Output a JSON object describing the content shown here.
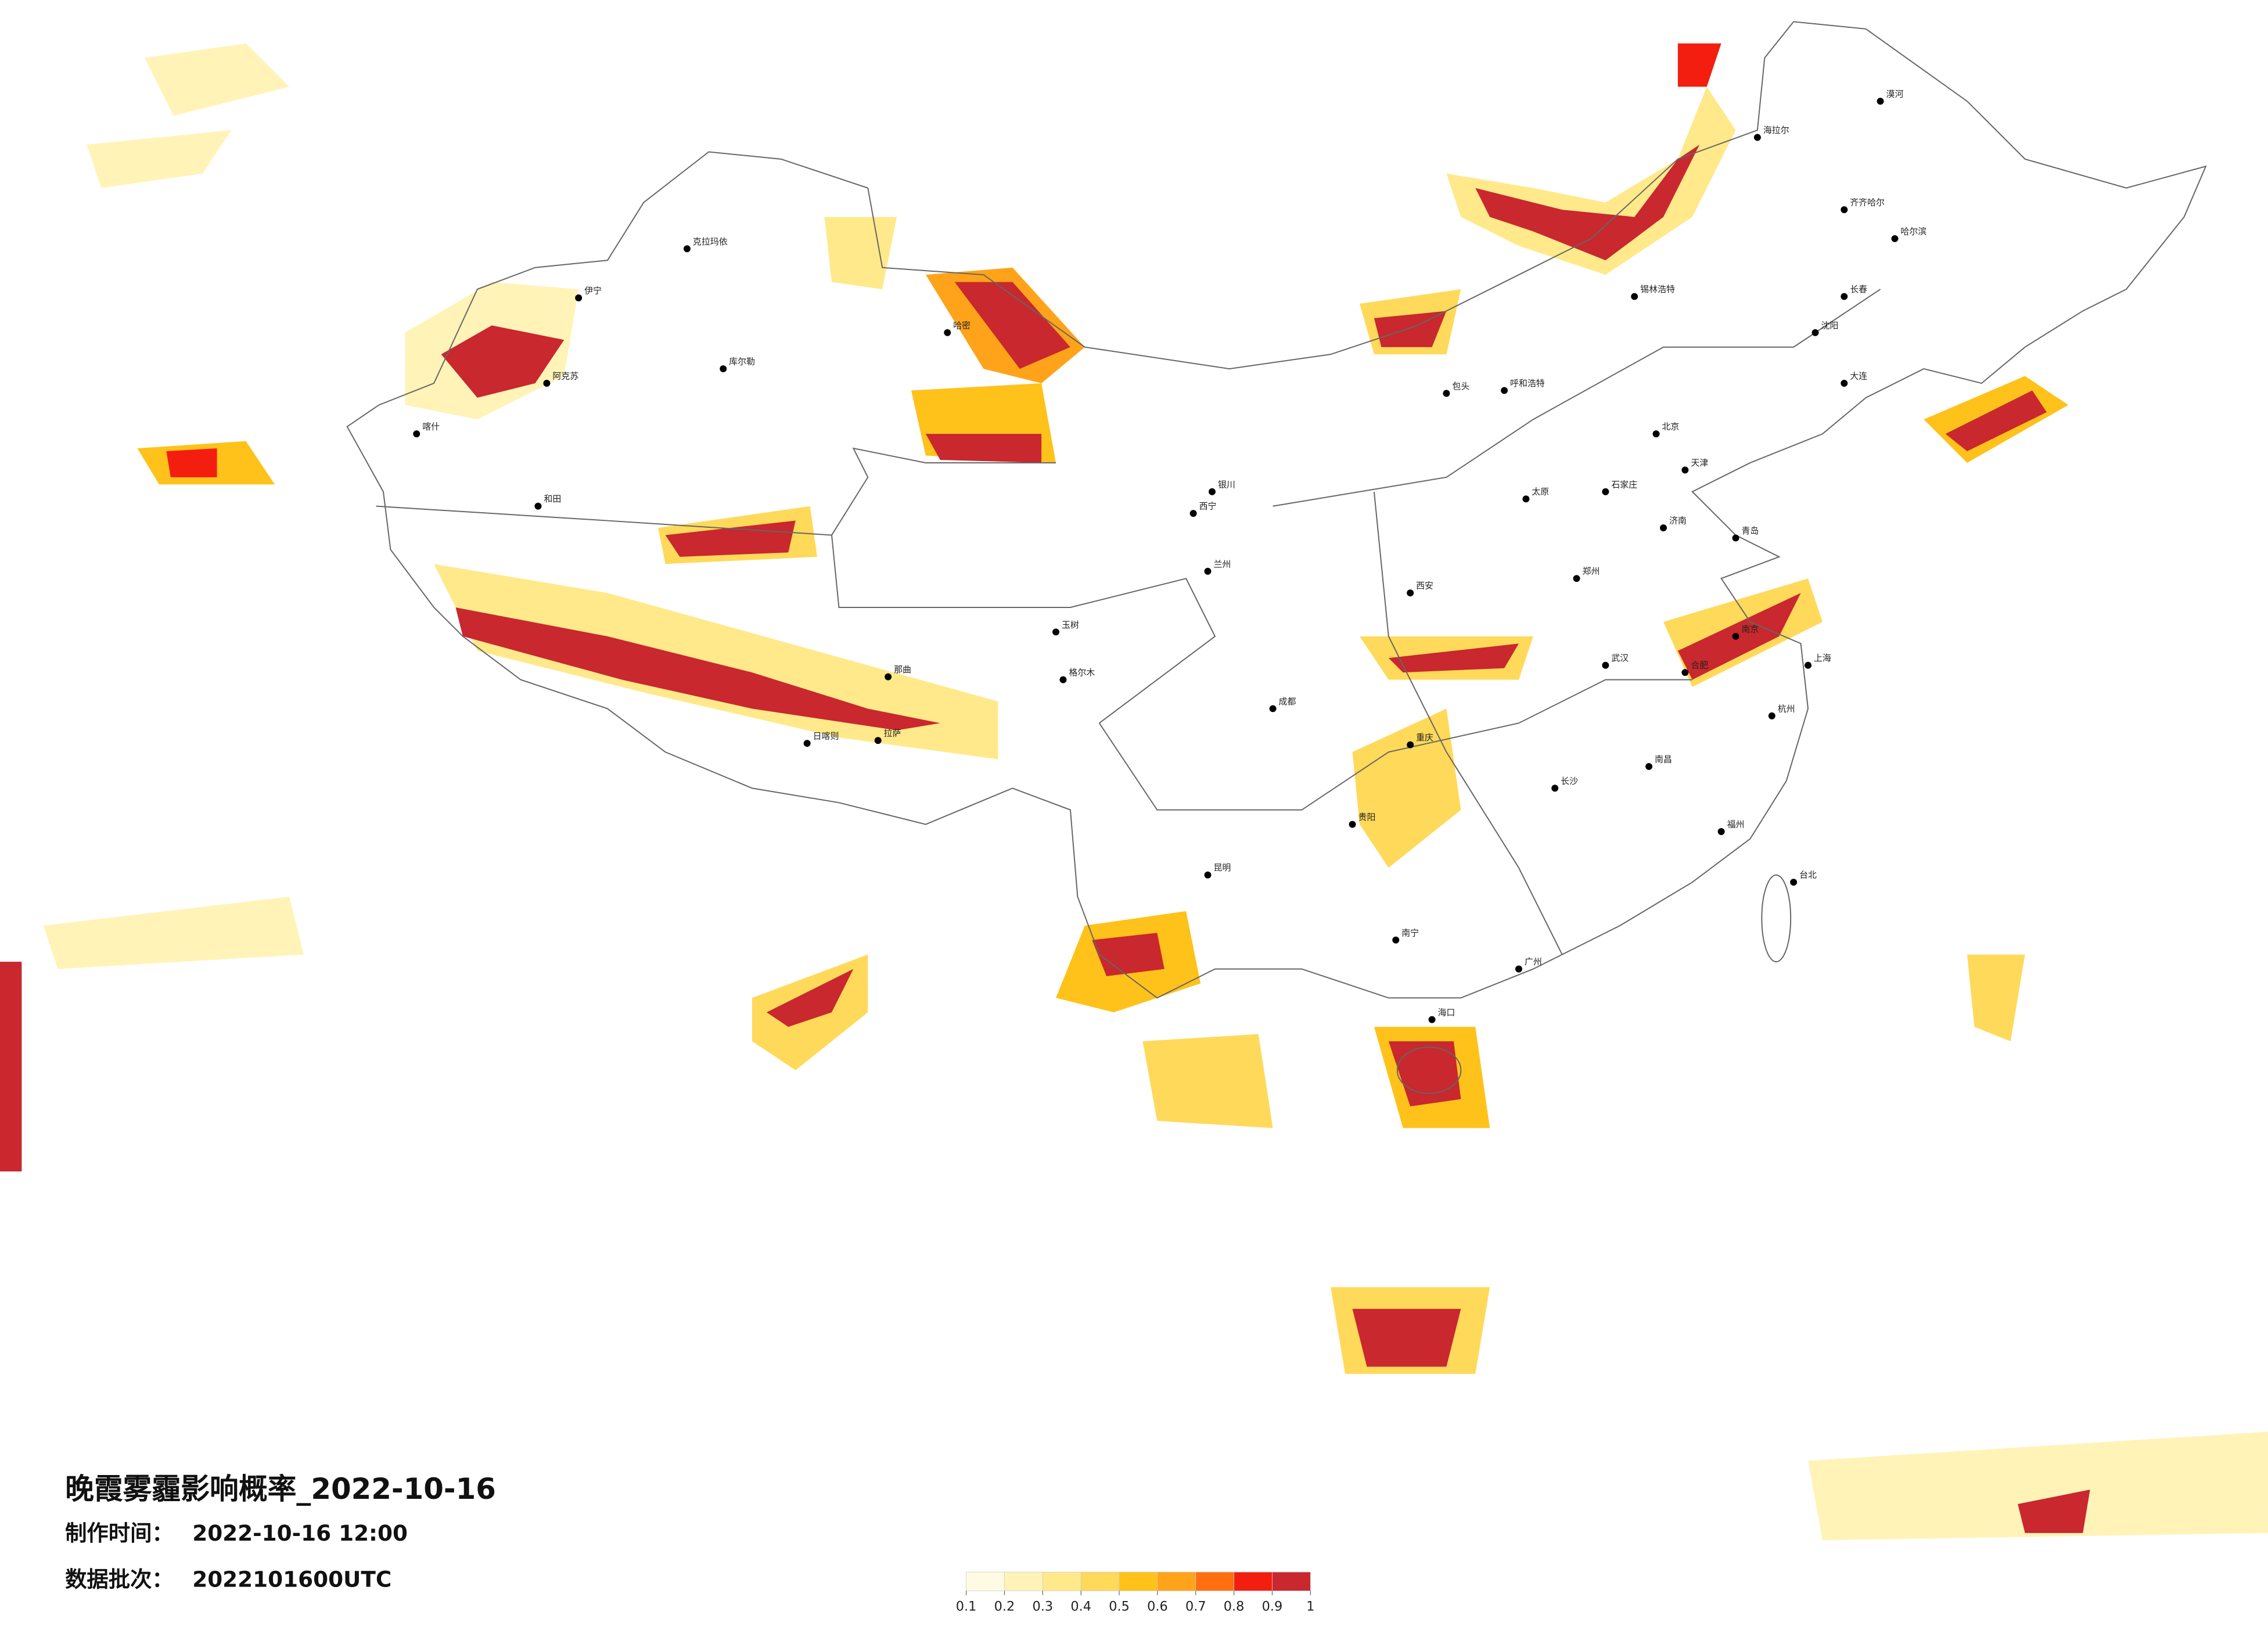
{
  "title": "晚霞雾霾影响概率_2022-10-16",
  "made_label": "制作时间：",
  "made_value": "2022-10-16 12:00",
  "batch_label": "数据批次：",
  "batch_value": "2022101600UTC",
  "legend": {
    "colors": [
      "#fffbe3",
      "#fff3b8",
      "#ffe98a",
      "#ffd95a",
      "#ffc21a",
      "#ffa31a",
      "#ff6f0f",
      "#f41e10",
      "#c8282e"
    ],
    "ticks": [
      {
        "value": 0.1,
        "label": "0.1"
      },
      {
        "value": 0.2,
        "label": "0.2"
      },
      {
        "value": 0.3,
        "label": "0.3"
      },
      {
        "value": 0.4,
        "label": "0.4"
      },
      {
        "value": 0.5,
        "label": "0.5"
      },
      {
        "value": 0.6,
        "label": "0.6"
      },
      {
        "value": 0.7,
        "label": "0.7"
      },
      {
        "value": 0.8,
        "label": "0.8"
      },
      {
        "value": 0.9,
        "label": "0.9"
      },
      1
    ]
  },
  "cities": [
    "克拉玛依",
    "伊宁",
    "阿克苏",
    "喀什",
    "和田",
    "库尔勒",
    "哈密",
    "格尔木",
    "拉萨",
    "日喀则",
    "那曲",
    "玉树",
    "西宁",
    "兰州",
    "银川",
    "呼和浩特",
    "包头",
    "北京",
    "天津",
    "石家庄",
    "太原",
    "济南",
    "青岛",
    "郑州",
    "西安",
    "成都",
    "重庆",
    "贵阳",
    "昆明",
    "南宁",
    "广州",
    "长沙",
    "武汉",
    "南昌",
    "杭州",
    "上海",
    "南京",
    "合肥",
    "福州",
    "台北",
    "海口",
    "沈阳",
    "长春",
    "哈尔滨",
    "大连",
    "齐齐哈尔",
    "海拉尔",
    "锡林浩特",
    "漠河"
  ]
}
